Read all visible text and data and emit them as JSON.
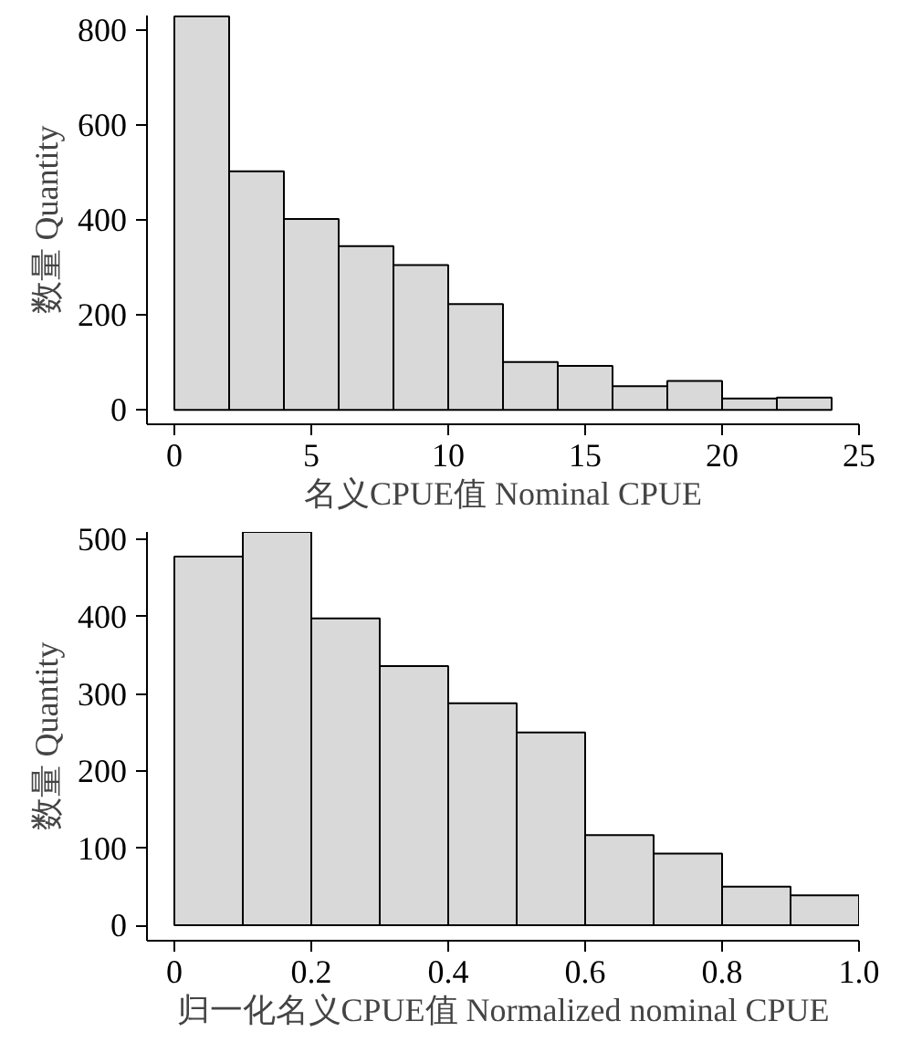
{
  "chart_data": [
    {
      "type": "histogram",
      "xlabel": "名义CPUE值 Nominal CPUE",
      "ylabel": "数量 Quantity",
      "bins": [
        0,
        2,
        4,
        6,
        8,
        10,
        12,
        14,
        16,
        18,
        20,
        22,
        24
      ],
      "values": [
        828,
        502,
        402,
        345,
        305,
        223,
        101,
        93,
        50,
        61,
        24,
        26
      ],
      "color": "#d9d9d9",
      "xlim": [
        -1,
        25
      ],
      "ylim": [
        -30,
        830
      ],
      "xticks": [
        0,
        5,
        10,
        15,
        20,
        25
      ],
      "yticks": [
        0,
        200,
        400,
        600,
        800
      ],
      "grid": false
    },
    {
      "type": "histogram",
      "xlabel": "归一化名义CPUE值 Normalized nominal CPUE",
      "ylabel": "数量 Quantity",
      "bins": [
        0,
        0.1,
        0.2,
        0.3,
        0.4,
        0.5,
        0.6,
        0.7,
        0.8,
        0.9,
        1.0
      ],
      "values": [
        478,
        510,
        398,
        336,
        288,
        250,
        117,
        93,
        50,
        39
      ],
      "color": "#d9d9d9",
      "xlim": [
        -0.04,
        1.0
      ],
      "ylim": [
        -20,
        510
      ],
      "xticks": [
        0,
        0.2,
        0.4,
        0.6,
        0.8,
        {
          "value": 1.0,
          "label": "1.0"
        }
      ],
      "yticks": [
        0,
        100,
        200,
        300,
        400,
        500
      ],
      "grid": false
    }
  ]
}
